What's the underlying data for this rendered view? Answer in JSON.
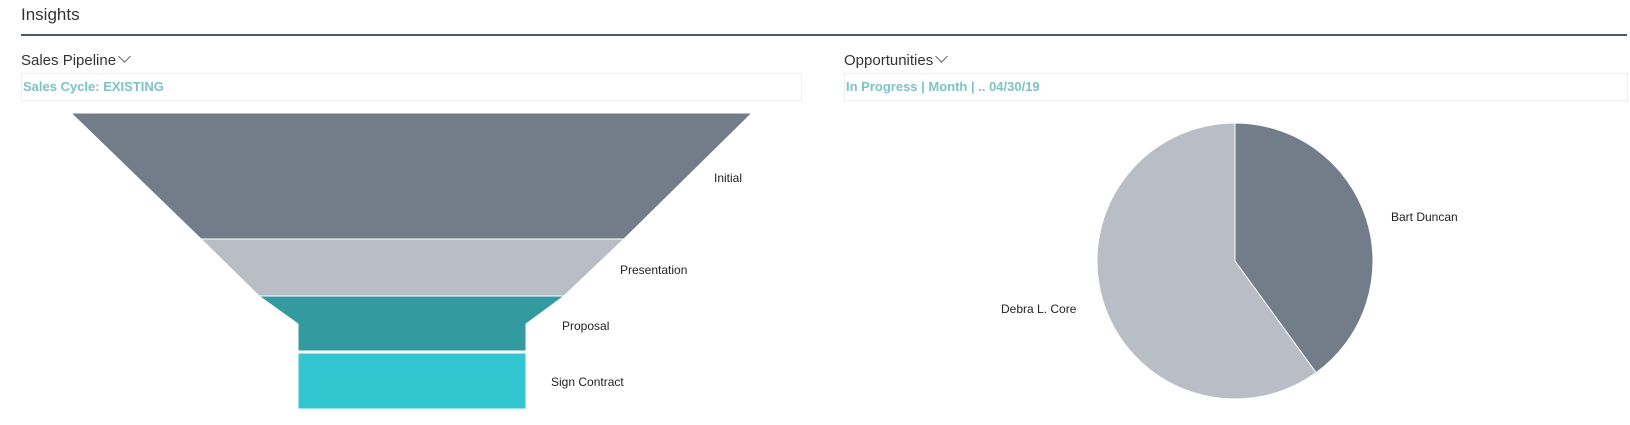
{
  "page": {
    "title": "Insights"
  },
  "sales_pipeline": {
    "title": "Sales Pipeline",
    "filter": "Sales Cycle: EXISTING"
  },
  "opportunities": {
    "title": "Opportunities",
    "filter": "In Progress | Month |  .. 04/30/19"
  },
  "chart_data": [
    {
      "type": "funnel",
      "title": "",
      "categories": [
        "Initial",
        "Presentation",
        "Proposal",
        "Sign Contract"
      ],
      "colors": [
        "#737d8a",
        "#b9bdc5",
        "#339aa0",
        "#33c6d0"
      ]
    },
    {
      "type": "pie",
      "title": "",
      "categories": [
        "Bart Duncan",
        "Debra L. Core"
      ],
      "values": [
        40,
        60
      ],
      "colors": [
        "#737d8a",
        "#b9bdc5"
      ]
    }
  ]
}
